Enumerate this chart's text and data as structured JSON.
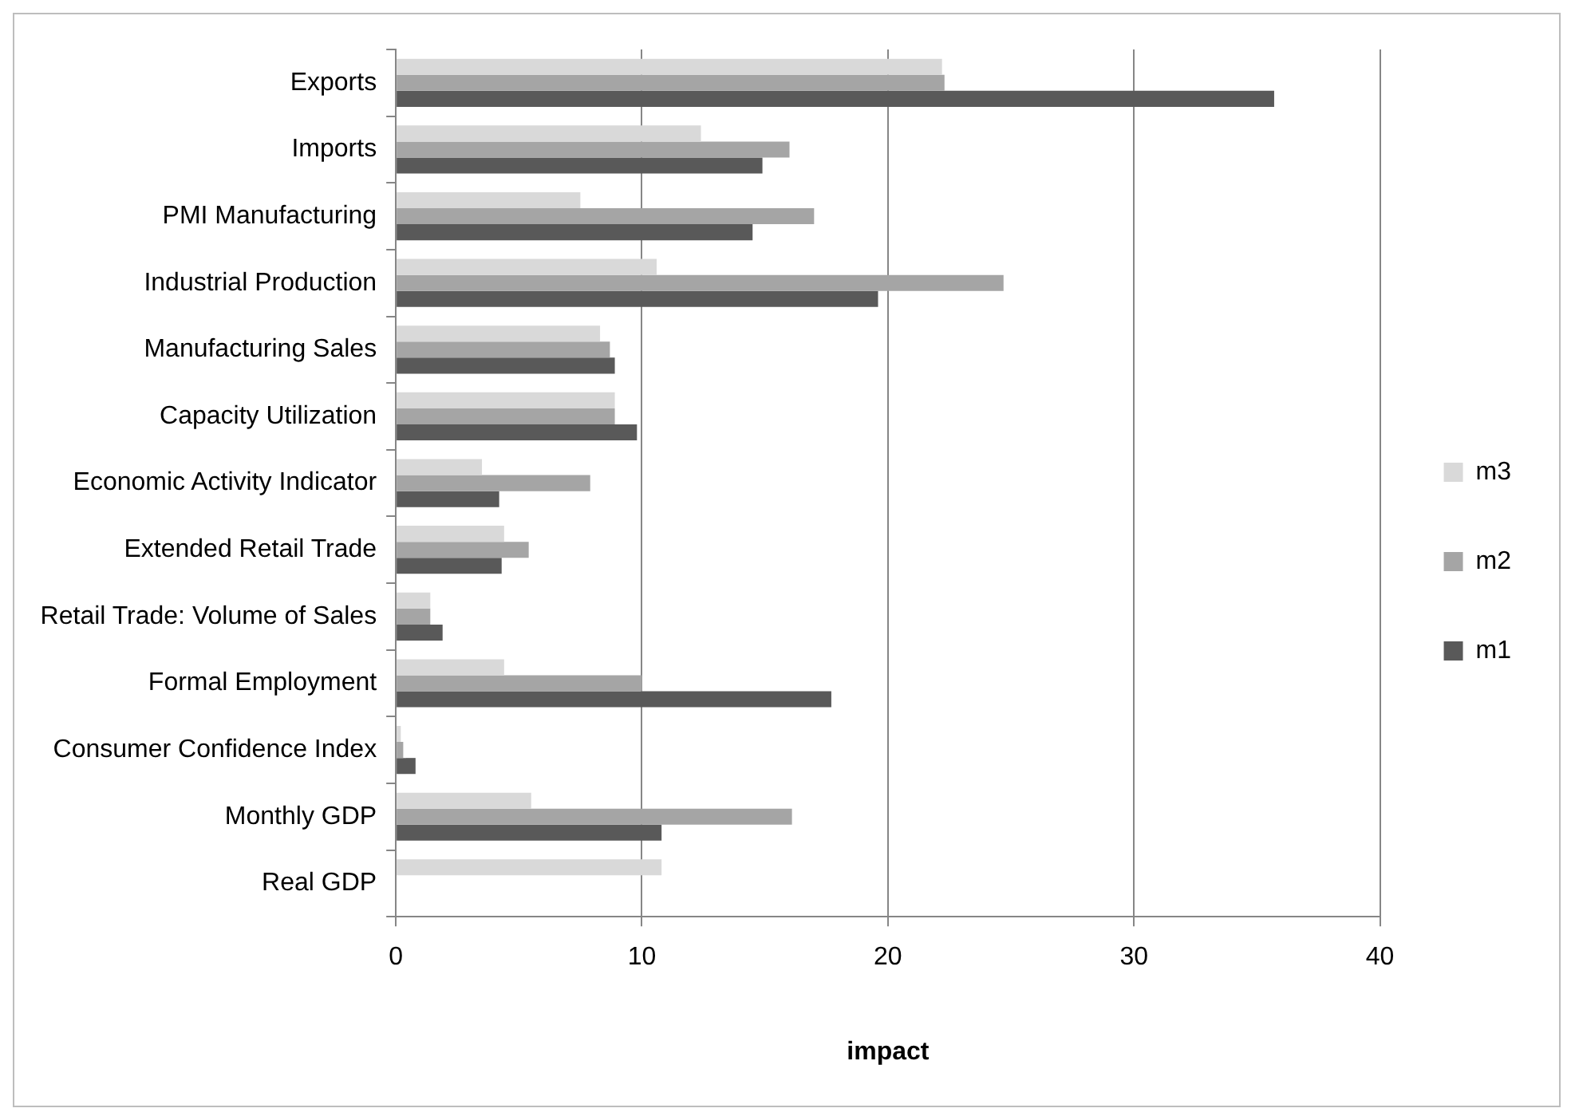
{
  "chart_data": {
    "type": "bar",
    "orientation": "horizontal",
    "xlabel": "impact",
    "categories": [
      "Exports",
      "Imports",
      "PMI Manufacturing",
      "Industrial Production",
      "Manufacturing Sales",
      "Capacity Utilization",
      "Economic Activity Indicator",
      "Extended Retail Trade",
      "Retail Trade: Volume of Sales",
      "Formal Employment",
      "Consumer Confidence Index",
      "Monthly GDP",
      "Real GDP"
    ],
    "series": [
      {
        "name": "m3",
        "color": "#d9d9d9",
        "values": [
          22.2,
          12.4,
          7.5,
          10.6,
          8.3,
          8.9,
          3.5,
          4.4,
          1.4,
          4.4,
          0.2,
          5.5,
          10.8
        ]
      },
      {
        "name": "m2",
        "color": "#a5a5a5",
        "values": [
          22.3,
          16.0,
          17.0,
          24.7,
          8.7,
          8.9,
          7.9,
          5.4,
          1.4,
          10.0,
          0.3,
          16.1,
          null
        ]
      },
      {
        "name": "m1",
        "color": "#595959",
        "values": [
          35.7,
          14.9,
          14.5,
          19.6,
          8.9,
          9.8,
          4.2,
          4.3,
          1.9,
          17.7,
          0.8,
          10.8,
          null
        ]
      }
    ],
    "xlim": [
      0,
      40
    ],
    "xticks": [
      0,
      10,
      20,
      30,
      40
    ],
    "grid": "x",
    "legend": "right"
  }
}
